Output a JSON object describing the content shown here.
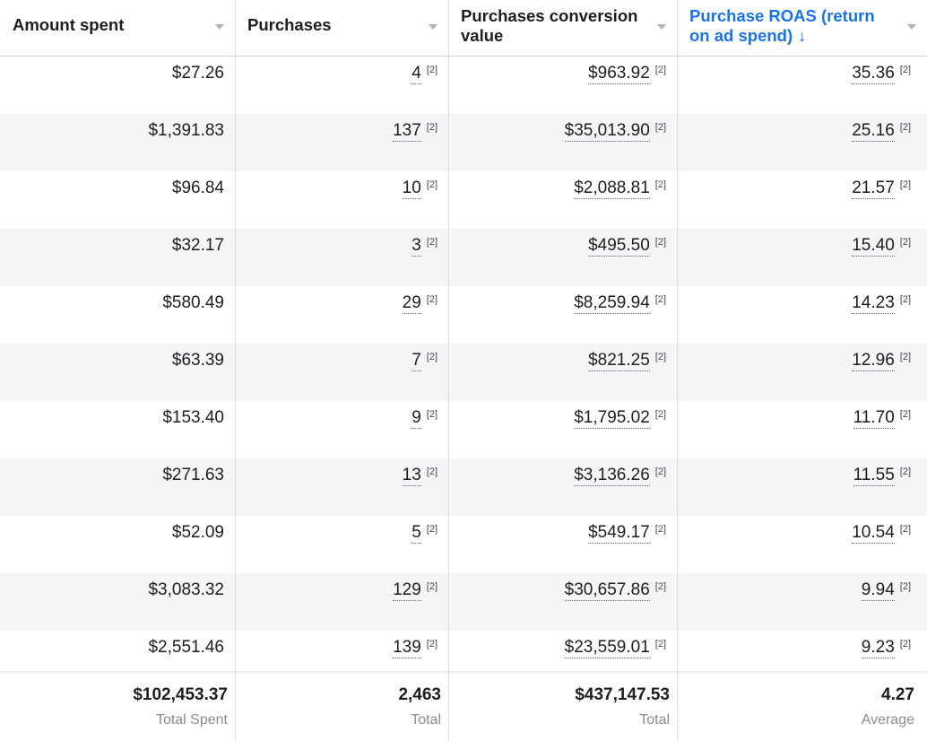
{
  "columns": [
    {
      "label": "Amount spent",
      "sorted": false
    },
    {
      "label": "Purchases",
      "sorted": false
    },
    {
      "label": "Purchases conversion\nvalue",
      "sorted": false
    },
    {
      "label": "Purchase ROAS (return\non ad spend)",
      "sorted": true,
      "sort_arrow": "↓"
    }
  ],
  "footnote_marker": "[2]",
  "rows": [
    {
      "amount_spent": "$27.26",
      "purchases": "4",
      "conversion_value": "$963.92",
      "roas": "35.36"
    },
    {
      "amount_spent": "$1,391.83",
      "purchases": "137",
      "conversion_value": "$35,013.90",
      "roas": "25.16"
    },
    {
      "amount_spent": "$96.84",
      "purchases": "10",
      "conversion_value": "$2,088.81",
      "roas": "21.57"
    },
    {
      "amount_spent": "$32.17",
      "purchases": "3",
      "conversion_value": "$495.50",
      "roas": "15.40"
    },
    {
      "amount_spent": "$580.49",
      "purchases": "29",
      "conversion_value": "$8,259.94",
      "roas": "14.23"
    },
    {
      "amount_spent": "$63.39",
      "purchases": "7",
      "conversion_value": "$821.25",
      "roas": "12.96"
    },
    {
      "amount_spent": "$153.40",
      "purchases": "9",
      "conversion_value": "$1,795.02",
      "roas": "11.70"
    },
    {
      "amount_spent": "$271.63",
      "purchases": "13",
      "conversion_value": "$3,136.26",
      "roas": "11.55"
    },
    {
      "amount_spent": "$52.09",
      "purchases": "5",
      "conversion_value": "$549.17",
      "roas": "10.54"
    },
    {
      "amount_spent": "$3,083.32",
      "purchases": "129",
      "conversion_value": "$30,657.86",
      "roas": "9.94"
    },
    {
      "amount_spent": "$2,551.46",
      "purchases": "139",
      "conversion_value": "$23,559.01",
      "roas": "9.23"
    }
  ],
  "totals": {
    "amount_spent": {
      "value": "$102,453.37",
      "label": "Total Spent"
    },
    "purchases": {
      "value": "2,463",
      "label": "Total"
    },
    "conversion_value": {
      "value": "$437,147.53",
      "label": "Total"
    },
    "roas": {
      "value": "4.27",
      "label": "Average"
    }
  },
  "colors": {
    "sorted_header": "#1a73e8",
    "alt_row": "#f4f5f7",
    "border": "#dadde1",
    "muted_label": "#8a8d91"
  },
  "icons": {
    "sort_caret": "caret-down-icon",
    "sort_direction": "arrow-down-icon"
  }
}
